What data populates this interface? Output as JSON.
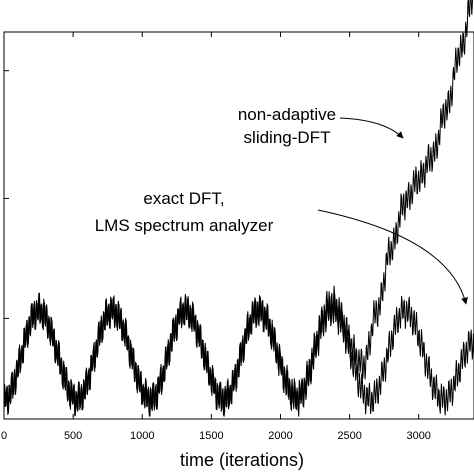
{
  "chart_data": {
    "type": "line",
    "title": "",
    "xlabel": "time (iterations)",
    "ylabel": "",
    "xlim": [
      0,
      3400
    ],
    "ylim": [
      0,
      1
    ],
    "x_ticks": [
      "0",
      "500",
      "1000",
      "1500",
      "2000",
      "2500",
      "3000"
    ],
    "x_tick_values": [
      0,
      500,
      1000,
      1500,
      2000,
      2500,
      3000
    ],
    "y_tick_values": [
      0.26,
      0.57,
      0.9
    ],
    "grid": false,
    "legend": "none",
    "series": [
      {
        "key": "exact",
        "x": [
          0,
          250,
          530,
          780,
          1060,
          1310,
          1590,
          1840,
          2120,
          2370,
          2650,
          2900,
          3180,
          3400
        ],
        "y": [
          0.05,
          0.28,
          0.05,
          0.28,
          0.05,
          0.28,
          0.05,
          0.28,
          0.05,
          0.28,
          0.05,
          0.28,
          0.05,
          0.2
        ],
        "color": "#000000"
      },
      {
        "key": "sliding",
        "x": [
          0,
          250,
          530,
          780,
          1060,
          1310,
          1590,
          1840,
          2120,
          2370,
          2600,
          2700,
          2800,
          2900,
          3000,
          3100,
          3200,
          3300,
          3400
        ],
        "y": [
          0.05,
          0.28,
          0.05,
          0.28,
          0.05,
          0.28,
          0.05,
          0.28,
          0.06,
          0.3,
          0.14,
          0.28,
          0.44,
          0.56,
          0.62,
          0.68,
          0.8,
          0.95,
          1.1
        ],
        "color": "#000000"
      }
    ],
    "annotations": [
      {
        "lines": [
          "non-adaptive",
          "sliding-DFT"
        ],
        "target": [
          2790,
          0.72
        ]
      },
      {
        "lines": [
          "exact DFT,",
          "LMS spectrum analyzer"
        ],
        "target": [
          3320,
          0.22
        ]
      }
    ]
  }
}
